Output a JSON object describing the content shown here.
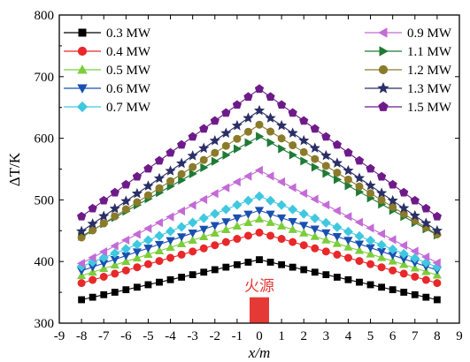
{
  "chart_data": {
    "type": "line",
    "xlabel": "x/m",
    "ylabel": "ΔT/K",
    "xlim": [
      -9,
      9
    ],
    "ylim": [
      300,
      800
    ],
    "xticks": [
      -9,
      -8,
      -7,
      -6,
      -5,
      -4,
      -3,
      -2,
      -1,
      0,
      1,
      2,
      3,
      4,
      5,
      6,
      7,
      8,
      9
    ],
    "xtick_labels": [
      "-9",
      "-8",
      "-7",
      "-6",
      "-5",
      "-4",
      "-3",
      "-2",
      "-1",
      "0",
      "1",
      "2",
      "3",
      "4",
      "5",
      "6",
      "7",
      "8",
      "9"
    ],
    "yticks": [
      300,
      400,
      500,
      600,
      700,
      800
    ],
    "ytick_labels": [
      "300",
      "400",
      "500",
      "600",
      "700",
      "800"
    ],
    "grid": false,
    "legend_placement": "top, two columns",
    "annotations": [
      {
        "text": "火源",
        "x": 0,
        "y": 342,
        "color": "#e53935",
        "marker": "fire-source-block"
      }
    ],
    "x": [
      -8,
      -7.5,
      -7,
      -6.5,
      -6,
      -5.5,
      -5,
      -4.5,
      -4,
      -3.5,
      -3,
      -2.5,
      -2,
      -1.5,
      -1,
      -0.5,
      0,
      0.5,
      1,
      1.5,
      2,
      2.5,
      3,
      3.5,
      4,
      4.5,
      5,
      5.5,
      6,
      6.5,
      7,
      7.5,
      8
    ],
    "series": [
      {
        "name": "0.3 MW",
        "color": "#000000",
        "marker": "square",
        "peak": 403,
        "left": 338,
        "right": 338
      },
      {
        "name": "0.4 MW",
        "color": "#e8282a",
        "marker": "circle",
        "peak": 447,
        "left": 365,
        "right": 365
      },
      {
        "name": "0.5 MW",
        "color": "#7ccd3c",
        "marker": "triangle-up",
        "peak": 469,
        "left": 377,
        "right": 378
      },
      {
        "name": "0.6 MW",
        "color": "#1a4fb0",
        "marker": "triangle-down",
        "peak": 483,
        "left": 385,
        "right": 386
      },
      {
        "name": "0.7 MW",
        "color": "#40c8e0",
        "marker": "diamond",
        "peak": 506,
        "left": 392,
        "right": 391
      },
      {
        "name": "0.9 MW",
        "color": "#c36bd6",
        "marker": "triangle-left",
        "peak": 548,
        "left": 397,
        "right": 398
      },
      {
        "name": "1.1 MW",
        "color": "#1f7a36",
        "marker": "triangle-right",
        "peak": 603,
        "left": 441,
        "right": 443
      },
      {
        "name": "1.2 MW",
        "color": "#8a7a2a",
        "marker": "circle",
        "peak": 622,
        "left": 439,
        "right": 444
      },
      {
        "name": "1.3 MW",
        "color": "#2a2f66",
        "marker": "star",
        "peak": 645,
        "left": 449,
        "right": 450
      },
      {
        "name": "1.5 MW",
        "color": "#6e1b8a",
        "marker": "pentagon",
        "peak": 680,
        "left": 473,
        "right": 473
      }
    ]
  }
}
